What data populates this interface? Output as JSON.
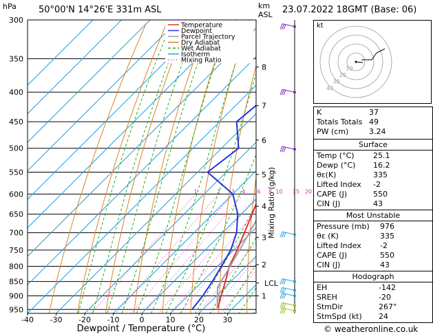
{
  "header": {
    "location": "50°00'N  14°26'E  331m  ASL",
    "datetime": "23.07.2022  18GMT  (Base: 06)",
    "hpa_label": "hPa",
    "km_label": "km",
    "asl_label": "ASL"
  },
  "colors": {
    "temperature": "#e03030",
    "dewpoint": "#2030e0",
    "parcel": "#a0a0a0",
    "dry_adiabat": "#e08020",
    "wet_adiabat": "#20b020",
    "isotherm": "#20a0e0",
    "mixing_ratio": "#e020c0",
    "wind_barb": "#8020c0"
  },
  "legend": [
    "Temperature",
    "Dewpoint",
    "Parcel Trajectory",
    "Dry Adiabat",
    "Wet Adiabat",
    "Isotherm",
    "Mixing Ratio"
  ],
  "chart_data": {
    "type": "line",
    "xlabel": "Dewpoint / Temperature (°C)",
    "ylabel": "hPa",
    "y2label": "Mixing Ratio (g/kg)",
    "x_ticks": [
      "-40",
      "-30",
      "-20",
      "-10",
      "0",
      "10",
      "20",
      "30"
    ],
    "pressure_levels": [
      300,
      350,
      400,
      450,
      500,
      550,
      600,
      650,
      700,
      750,
      800,
      850,
      900,
      950
    ],
    "xlim": [
      -40,
      40
    ],
    "ylim": [
      965,
      300
    ],
    "km_labels": [
      "8",
      "7",
      "6",
      "5",
      "4",
      "3",
      "2",
      "LCL",
      "1"
    ],
    "km_label_pressures": [
      362,
      422,
      484,
      555,
      630,
      713,
      795,
      855,
      900
    ],
    "mixing_ratio_labels": [
      "1",
      "2",
      "3",
      "4",
      "6",
      "8",
      "10",
      "15",
      "20",
      "25"
    ],
    "series": [
      {
        "name": "Temperature",
        "points": [
          [
            950,
            25.1
          ],
          [
            900,
            21.6
          ],
          [
            850,
            18.1
          ],
          [
            800,
            14.1
          ],
          [
            750,
            11.2
          ],
          [
            700,
            7.6
          ],
          [
            650,
            3.8
          ],
          [
            600,
            -0.4
          ],
          [
            550,
            -5.2
          ],
          [
            500,
            -10.6
          ],
          [
            450,
            -16.8
          ],
          [
            400,
            -23.8
          ],
          [
            350,
            -31.8
          ],
          [
            300,
            -41.0
          ]
        ]
      },
      {
        "name": "Dewpoint",
        "points": [
          [
            950,
            16.2
          ],
          [
            900,
            15.2
          ],
          [
            850,
            13.5
          ],
          [
            800,
            11.4
          ],
          [
            750,
            8.9
          ],
          [
            700,
            4.9
          ],
          [
            650,
            -1.2
          ],
          [
            600,
            -10.0
          ],
          [
            550,
            -26.5
          ],
          [
            500,
            -24.0
          ],
          [
            450,
            -34.0
          ],
          [
            400,
            -32.0
          ],
          [
            350,
            -44.0
          ],
          [
            300,
            -52.0
          ]
        ]
      },
      {
        "name": "Parcel Trajectory",
        "points": [
          [
            950,
            25.1
          ],
          [
            900,
            20.3
          ],
          [
            870,
            17.4
          ],
          [
            800,
            14.4
          ],
          [
            700,
            9.4
          ],
          [
            600,
            3.4
          ],
          [
            500,
            -4.6
          ],
          [
            400,
            -16.0
          ],
          [
            300,
            -32.0
          ]
        ]
      }
    ],
    "wind_barbs_pressures": [
      308,
      400,
      502,
      705,
      850,
      880,
      900,
      935,
      955
    ]
  },
  "stats": {
    "k_label": "K",
    "k": "37",
    "tt_label": "Totals Totals",
    "tt": "49",
    "pw_label": "PW (cm)",
    "pw": "3.24"
  },
  "surface": {
    "title": "Surface",
    "rows": [
      {
        "label": "Temp (°C)",
        "value": "25.1"
      },
      {
        "label": "Dewp (°C)",
        "value": "16.2"
      },
      {
        "label": "θε(K)",
        "value": "335"
      },
      {
        "label": "Lifted Index",
        "value": "-2"
      },
      {
        "label": "CAPE (J)",
        "value": "550"
      },
      {
        "label": "CIN (J)",
        "value": "43"
      }
    ]
  },
  "most_unstable": {
    "title": "Most Unstable",
    "rows": [
      {
        "label": "Pressure (mb)",
        "value": "976"
      },
      {
        "label": "θε (K)",
        "value": "335"
      },
      {
        "label": "Lifted Index",
        "value": "-2"
      },
      {
        "label": "CAPE (J)",
        "value": "550"
      },
      {
        "label": "CIN (J)",
        "value": "43"
      }
    ]
  },
  "hodograph": {
    "title": "Hodograph",
    "unit_label": "kt",
    "ring_labels": [
      "10",
      "20",
      "30",
      "40"
    ],
    "rows": [
      {
        "label": "EH",
        "value": "-142"
      },
      {
        "label": "SREH",
        "value": "-20"
      },
      {
        "label": "StmDir",
        "value": "267°"
      },
      {
        "label": "StmSpd (kt)",
        "value": "24"
      }
    ]
  },
  "footer": "© weatheronline.co.uk"
}
